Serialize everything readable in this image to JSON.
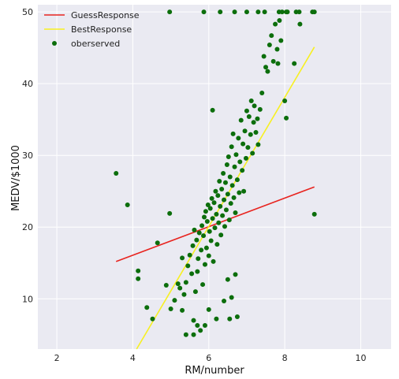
{
  "chart_data": {
    "type": "scatter",
    "title": "",
    "xlabel": "RM/number",
    "ylabel": "MEDV/$1000",
    "xlim": [
      1.5,
      10.8
    ],
    "ylim": [
      3,
      51
    ],
    "xticks": [
      2,
      4,
      6,
      8,
      10
    ],
    "yticks": [
      10,
      20,
      30,
      40,
      50
    ],
    "grid": true,
    "legend_position": "top-left",
    "series": [
      {
        "name": "GuessResponse",
        "kind": "line",
        "color": "#e8241f",
        "x": [
          3.56,
          8.78
        ],
        "y": [
          15.2,
          25.6
        ]
      },
      {
        "name": "BestResponse",
        "kind": "line",
        "color": "#f7f021",
        "x": [
          4.1,
          8.78
        ],
        "y": [
          3.0,
          45.1
        ]
      },
      {
        "name": "oberserved",
        "kind": "scatter",
        "color": "#0c6e0c",
        "points": [
          [
            4.97,
            50
          ],
          [
            5.87,
            50
          ],
          [
            6.3,
            50
          ],
          [
            6.68,
            50
          ],
          [
            7.0,
            50
          ],
          [
            7.3,
            50
          ],
          [
            7.47,
            50
          ],
          [
            7.85,
            50
          ],
          [
            7.93,
            50
          ],
          [
            8.04,
            50
          ],
          [
            8.07,
            50
          ],
          [
            8.3,
            50
          ],
          [
            8.38,
            50
          ],
          [
            8.73,
            50
          ],
          [
            8.78,
            50
          ],
          [
            3.56,
            27.5
          ],
          [
            3.86,
            23.1
          ],
          [
            4.14,
            13.9
          ],
          [
            4.14,
            12.8
          ],
          [
            4.37,
            8.8
          ],
          [
            4.52,
            7.2
          ],
          [
            4.65,
            17.8
          ],
          [
            4.88,
            11.9
          ],
          [
            4.97,
            21.9
          ],
          [
            5.0,
            8.6
          ],
          [
            5.1,
            9.8
          ],
          [
            5.19,
            12.1
          ],
          [
            5.24,
            11.5
          ],
          [
            5.3,
            15.7
          ],
          [
            5.35,
            10.6
          ],
          [
            5.4,
            12.3
          ],
          [
            5.45,
            14.6
          ],
          [
            5.5,
            16.1
          ],
          [
            5.55,
            13.5
          ],
          [
            5.58,
            17.4
          ],
          [
            5.6,
            7.0
          ],
          [
            5.62,
            19.6
          ],
          [
            5.65,
            11.0
          ],
          [
            5.68,
            18.2
          ],
          [
            5.7,
            13.8
          ],
          [
            5.72,
            15.6
          ],
          [
            5.75,
            19.2
          ],
          [
            5.78,
            5.6
          ],
          [
            5.8,
            16.8
          ],
          [
            5.82,
            20.2
          ],
          [
            5.84,
            12.0
          ],
          [
            5.86,
            18.8
          ],
          [
            5.88,
            21.4
          ],
          [
            5.9,
            14.8
          ],
          [
            5.92,
            22.2
          ],
          [
            5.94,
            17.1
          ],
          [
            5.96,
            20.8
          ],
          [
            5.98,
            23.1
          ],
          [
            6.0,
            16.0
          ],
          [
            6.02,
            19.4
          ],
          [
            6.04,
            22.6
          ],
          [
            6.06,
            18.1
          ],
          [
            6.08,
            24.0
          ],
          [
            6.1,
            21.2
          ],
          [
            6.12,
            15.2
          ],
          [
            6.14,
            23.4
          ],
          [
            6.16,
            19.9
          ],
          [
            6.18,
            25.0
          ],
          [
            6.2,
            21.8
          ],
          [
            6.22,
            17.6
          ],
          [
            6.24,
            24.4
          ],
          [
            6.26,
            20.6
          ],
          [
            6.28,
            26.4
          ],
          [
            6.3,
            22.9
          ],
          [
            6.32,
            18.9
          ],
          [
            6.34,
            25.3
          ],
          [
            6.36,
            21.6
          ],
          [
            6.38,
            27.5
          ],
          [
            6.4,
            23.8
          ],
          [
            6.42,
            20.1
          ],
          [
            6.44,
            26.2
          ],
          [
            6.46,
            22.4
          ],
          [
            6.48,
            28.7
          ],
          [
            6.5,
            24.6
          ],
          [
            6.52,
            29.8
          ],
          [
            6.54,
            21.0
          ],
          [
            6.56,
            27.0
          ],
          [
            6.58,
            23.3
          ],
          [
            6.6,
            31.2
          ],
          [
            6.62,
            25.8
          ],
          [
            6.64,
            33.0
          ],
          [
            6.66,
            24.1
          ],
          [
            6.68,
            28.4
          ],
          [
            6.7,
            22.0
          ],
          [
            6.72,
            30.1
          ],
          [
            6.75,
            26.6
          ],
          [
            6.78,
            32.4
          ],
          [
            6.8,
            24.8
          ],
          [
            6.82,
            29.1
          ],
          [
            6.85,
            34.9
          ],
          [
            6.88,
            27.9
          ],
          [
            6.9,
            31.6
          ],
          [
            6.92,
            25.0
          ],
          [
            6.95,
            33.4
          ],
          [
            6.98,
            29.6
          ],
          [
            7.0,
            36.2
          ],
          [
            7.03,
            31.1
          ],
          [
            7.06,
            35.4
          ],
          [
            7.1,
            32.9
          ],
          [
            7.12,
            37.6
          ],
          [
            7.15,
            30.3
          ],
          [
            7.18,
            34.6
          ],
          [
            7.2,
            36.9
          ],
          [
            7.24,
            33.2
          ],
          [
            7.28,
            35.1
          ],
          [
            7.3,
            31.5
          ],
          [
            7.35,
            36.4
          ],
          [
            7.4,
            38.7
          ],
          [
            7.45,
            43.8
          ],
          [
            7.5,
            42.3
          ],
          [
            7.55,
            41.7
          ],
          [
            7.6,
            45.4
          ],
          [
            7.65,
            46.7
          ],
          [
            7.7,
            43.1
          ],
          [
            7.75,
            48.3
          ],
          [
            7.8,
            44.8
          ],
          [
            7.82,
            42.8
          ],
          [
            7.86,
            48.8
          ],
          [
            7.9,
            46.0
          ],
          [
            8.0,
            37.6
          ],
          [
            8.04,
            35.2
          ],
          [
            8.25,
            42.8
          ],
          [
            8.4,
            48.3
          ],
          [
            8.78,
            21.8
          ],
          [
            6.1,
            36.3
          ],
          [
            6.0,
            8.5
          ],
          [
            6.2,
            7.2
          ],
          [
            5.7,
            6.3
          ],
          [
            6.4,
            9.7
          ],
          [
            6.5,
            12.7
          ],
          [
            6.6,
            10.2
          ],
          [
            6.7,
            13.4
          ],
          [
            5.3,
            8.4
          ],
          [
            5.4,
            5.0
          ],
          [
            5.6,
            5.0
          ],
          [
            5.9,
            6.3
          ],
          [
            6.75,
            7.5
          ],
          [
            6.55,
            7.2
          ]
        ]
      }
    ]
  }
}
